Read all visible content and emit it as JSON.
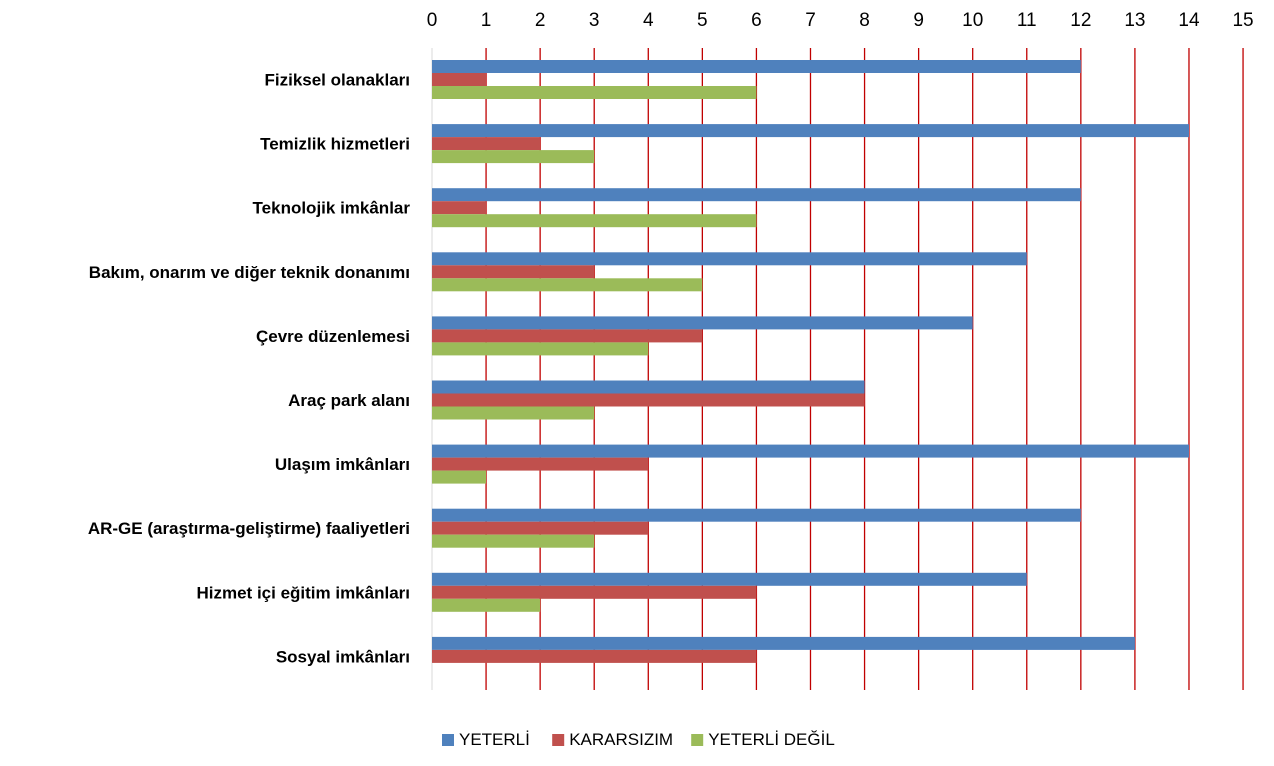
{
  "chart_data": {
    "type": "bar",
    "orientation": "horizontal",
    "categories": [
      "Fiziksel olanakları",
      "Temizlik hizmetleri",
      "Teknolojik imkânlar",
      "Bakım, onarım ve diğer teknik donanımı",
      "Çevre düzenlemesi",
      "Araç park alanı",
      "Ulaşım imkânları",
      "AR-GE (araştırma-geliştirme) faaliyetleri",
      "Hizmet içi eğitim imkânları",
      "Sosyal imkânları"
    ],
    "series": [
      {
        "name": "YETERLİ",
        "color": "#4F81BD",
        "values": [
          12,
          14,
          12,
          11,
          10,
          8,
          14,
          12,
          11,
          13
        ]
      },
      {
        "name": "KARARSIZIM",
        "color": "#C0504D",
        "values": [
          1,
          2,
          1,
          3,
          5,
          8,
          4,
          4,
          6,
          6
        ]
      },
      {
        "name": "YETERLİ DEĞİL",
        "color": "#9BBB59",
        "values": [
          6,
          3,
          6,
          5,
          4,
          3,
          1,
          3,
          2,
          0
        ]
      }
    ],
    "xlim": [
      0,
      15
    ],
    "xticks": [
      "0",
      "1",
      "2",
      "3",
      "4",
      "5",
      "6",
      "7",
      "8",
      "9",
      "10",
      "11",
      "12",
      "13",
      "14",
      "15"
    ],
    "x_axis_position": "top",
    "grid": true,
    "grid_color": "#C00000",
    "legend_position": "bottom",
    "title": "",
    "xlabel": "",
    "ylabel": ""
  }
}
